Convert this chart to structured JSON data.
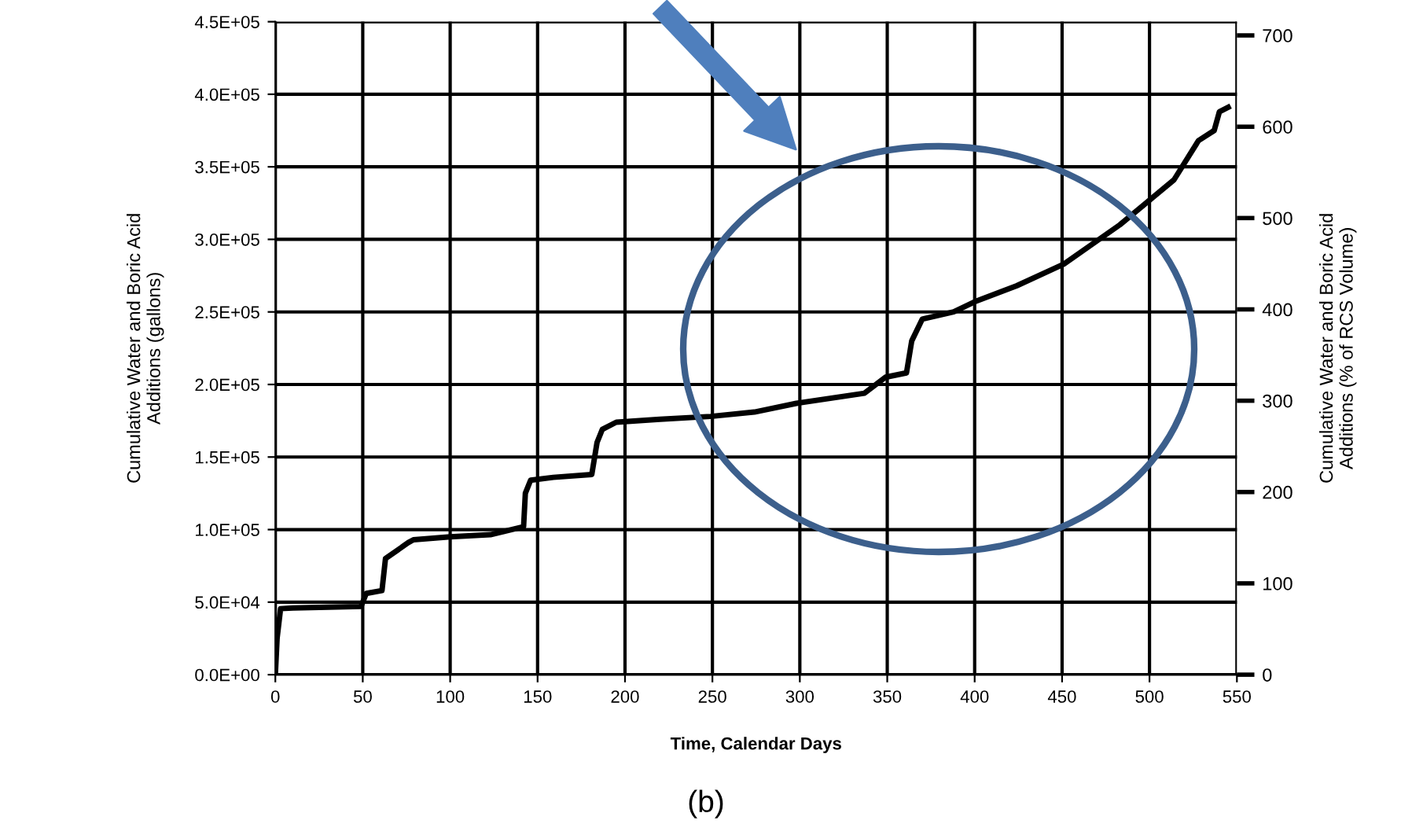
{
  "chart_data": {
    "type": "line",
    "x": [
      0,
      1,
      3,
      10,
      30,
      49,
      52,
      61,
      63,
      76,
      79,
      100,
      123,
      142,
      143,
      146,
      159,
      181,
      184,
      187,
      195,
      220,
      249,
      274,
      298,
      337,
      349,
      361,
      364,
      370,
      388,
      400,
      424,
      451,
      483,
      499,
      514,
      528,
      537,
      540,
      545
    ],
    "series": [
      {
        "color": "#000000",
        "values": [
          0,
          25000,
          45500,
          46000,
          46500,
          47000,
          56000,
          58000,
          80000,
          91000,
          93000,
          95000,
          96500,
          102000,
          125000,
          134000,
          136000,
          138000,
          160000,
          169000,
          174000,
          176000,
          178000,
          181000,
          187000,
          194000,
          205000,
          208000,
          230000,
          245000,
          250000,
          257000,
          268000,
          283000,
          310000,
          326000,
          341000,
          368000,
          375000,
          388000,
          391000
        ]
      }
    ],
    "xlabel": "Time, Calendar Days",
    "ylabel": "Cumulative Water and Boric Acid\nAdditions (gallons)",
    "y2label": "Cumulative Water and Boric Acid\nAdditions (% of RCS Volume)",
    "xlim": [
      0,
      550
    ],
    "xticks": [
      0,
      50,
      100,
      150,
      200,
      250,
      300,
      350,
      400,
      450,
      500,
      550
    ],
    "ylim": [
      0,
      450000
    ],
    "yticks": [
      {
        "value": 0,
        "label": "0.0E+00"
      },
      {
        "value": 50000,
        "label": "5.0E+04"
      },
      {
        "value": 100000,
        "label": "1.0E+05"
      },
      {
        "value": 150000,
        "label": "1.5E+05"
      },
      {
        "value": 200000,
        "label": "2.0E+05"
      },
      {
        "value": 250000,
        "label": "2.5E+05"
      },
      {
        "value": 300000,
        "label": "3.0E+05"
      },
      {
        "value": 350000,
        "label": "3.5E+05"
      },
      {
        "value": 400000,
        "label": "4.0E+05"
      },
      {
        "value": 450000,
        "label": "4.5E+05"
      }
    ],
    "y2lim": [
      0,
      715
    ],
    "y2ticks": [
      0,
      100,
      200,
      300,
      400,
      500,
      600,
      700
    ],
    "grid": true,
    "legend": false,
    "marker": "none",
    "line_style": "solid",
    "annotations": [
      "(b)"
    ]
  }
}
